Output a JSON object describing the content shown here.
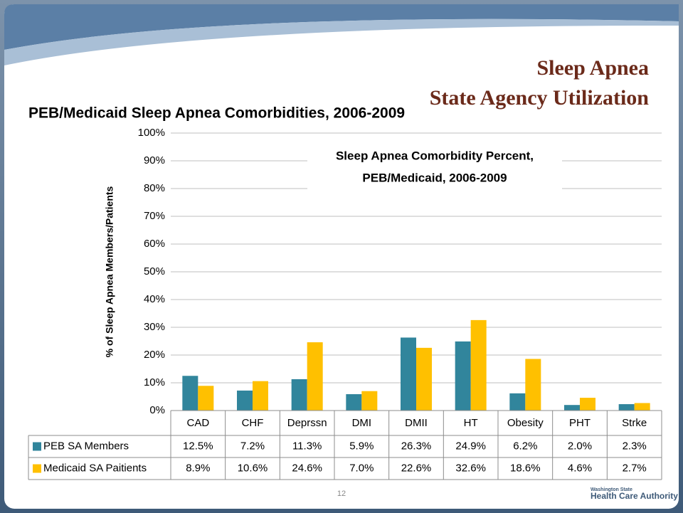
{
  "slide_title": [
    "Sleep Apnea",
    "State Agency Utilization"
  ],
  "page_number": "12",
  "logo": [
    "Washington State",
    "Health Care Authority"
  ],
  "chart_data": {
    "type": "bar",
    "title": "PEB/Medicaid Sleep Apnea Comorbidities, 2006-2009",
    "inner_title": [
      "Sleep Apnea Comorbidity Percent,",
      "PEB/Medicaid, 2006-2009"
    ],
    "y_label": "% of Sleep Apnea Members/Patients",
    "categories": [
      "CAD",
      "CHF",
      "Deprssn",
      "DMI",
      "DMII",
      "HT",
      "Obesity",
      "PHT",
      "Strke"
    ],
    "series": [
      {
        "name": "PEB SA Members",
        "color": "#31859c",
        "values": [
          12.5,
          7.2,
          11.3,
          5.9,
          26.3,
          24.9,
          6.2,
          2.0,
          2.3
        ],
        "value_labels": [
          "12.5%",
          "7.2%",
          "11.3%",
          "5.9%",
          "26.3%",
          "24.9%",
          "6.2%",
          "2.0%",
          "2.3%"
        ]
      },
      {
        "name": "Medicaid SA Paitients",
        "color": "#ffc000",
        "values": [
          8.9,
          10.6,
          24.6,
          7.0,
          22.6,
          32.6,
          18.6,
          4.6,
          2.7
        ],
        "value_labels": [
          "8.9%",
          "10.6%",
          "24.6%",
          "7.0%",
          "22.6%",
          "32.6%",
          "18.6%",
          "4.6%",
          "2.7%"
        ]
      }
    ],
    "ylim": [
      0,
      100
    ],
    "yticks": [
      {
        "value": 0,
        "label": "0%"
      },
      {
        "value": 10,
        "label": "10%"
      },
      {
        "value": 20,
        "label": "20%"
      },
      {
        "value": 30,
        "label": "30%"
      },
      {
        "value": 40,
        "label": "40%"
      },
      {
        "value": 50,
        "label": "50%"
      },
      {
        "value": 60,
        "label": "60%"
      },
      {
        "value": 70,
        "label": "70%"
      },
      {
        "value": 80,
        "label": "80%"
      },
      {
        "value": 90,
        "label": "90%"
      },
      {
        "value": 100,
        "label": "100%"
      }
    ],
    "grid": true
  }
}
